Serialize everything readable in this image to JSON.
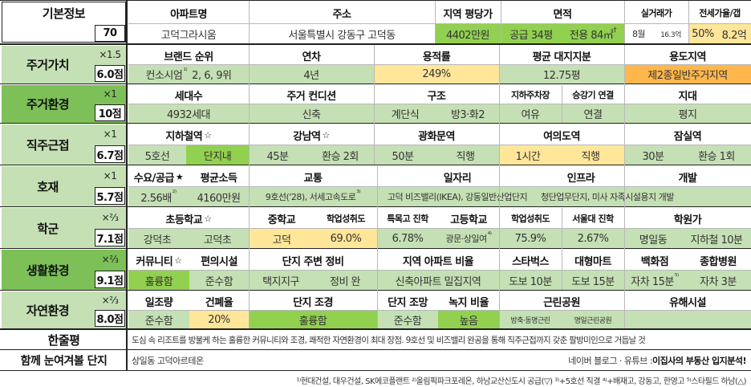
{
  "basic": {
    "label": "기본정보",
    "score": "70",
    "headers": {
      "apt": "아파트명",
      "addr": "주소",
      "price": "지역 평당가",
      "area": "면적",
      "trade": "실거래가",
      "gap": "전세가율/갭"
    },
    "apt_name": "고덕그라시움",
    "address": "서울특별시 강동구 고덕동",
    "price": "4402만원",
    "area_supply": "공급 34평",
    "area_use": "전용 84㎡",
    "area_mark": "†",
    "trade_month": "8월",
    "trade_value": "16.3억",
    "gap_rate": "50%",
    "gap_value": "8.2억"
  },
  "living_value": {
    "label": "주거가치",
    "mult": "×1.5",
    "score": "6.0점",
    "h1": "브랜드 순위",
    "h2": "연차",
    "h3": "용적률",
    "h4": "평균 대지지분",
    "h5": "용도지역",
    "v1a": "컨소시엄",
    "v1sup": "¹⁾",
    "v1b": "2, 6, 9위",
    "v2": "4년",
    "v3": "249%",
    "v4": "12.75평",
    "v5": "제2종일반주거지역"
  },
  "living_env": {
    "label": "주거환경",
    "mult": "×1",
    "score": "10점",
    "h1": "세대수",
    "h2": "주거 컨디션",
    "h3": "구조",
    "h4a": "지하주차장",
    "h4b": "승강기 연결",
    "h5": "지대",
    "v1": "4932세대",
    "v2": "신축",
    "v3a": "계단식",
    "v3b": "방3·화2",
    "v4a": "여유",
    "v4b": "연결",
    "v5": "평지"
  },
  "commute": {
    "label": "직주근접",
    "mult": "×1",
    "score": "6.7점",
    "h1": "지하철역",
    "h1s": "☆",
    "h2": "강남역",
    "h2s": "☆",
    "h3": "광화문역",
    "h4": "여의도역",
    "h5": "잠실역",
    "v1a": "5호선",
    "v1b": "단지내",
    "v2a": "45분",
    "v2b": "환승 2회",
    "v3a": "50분",
    "v3b": "직행",
    "v4a": "1시간",
    "v4b": "직행",
    "v5a": "30분",
    "v5b": "환승 1회"
  },
  "boon": {
    "label": "호재",
    "mult": "×1",
    "score": "5.7점",
    "h1": "수요/공급",
    "h1s": "★",
    "h2": "평균소득",
    "h3": "교통",
    "h4": "일자리",
    "h5": "인프라",
    "h6": "개발",
    "v1": "2.56배",
    "v1sup": "²⁾",
    "v2": "4160만원",
    "v3": "9호선('28), 서세고속도로",
    "v3sup": "³⁾",
    "v4": "고덕 비즈밸리(IKEA), 강동일반산업단지",
    "v5": "청단업무단지, 미사 자족시설용지 개발"
  },
  "school": {
    "label": "학군",
    "mult": "×⅔",
    "score": "7.1점",
    "h1": "초등학교",
    "h1s": "☆",
    "h2": "중학교",
    "h2b": "학업성취도",
    "h3": "특목고 진학",
    "h4": "고등학교",
    "h4b": "학업성취도",
    "h5": "서울대 진학",
    "h6": "학원가",
    "v1a": "강덕초",
    "v1b": "고덕초",
    "v2a": "고덕",
    "v2b": "69.0%",
    "v3": "6.78%",
    "v4a": "광문·상일여",
    "v4sup": "⁴⁾",
    "v4b": "75.9%",
    "v5": "2.67%",
    "v6a": "명일동",
    "v6b": "지하철 10분"
  },
  "life_env": {
    "label": "생활환경",
    "mult": "×⅔",
    "score": "9.1점",
    "h1": "커뮤니티",
    "h1s": "☆",
    "h2": "편의시설",
    "h3": "단지 주변 정비",
    "h4": "지역 아파트 비율",
    "h5": "스타벅스",
    "h6": "대형마트",
    "h7": "백화점",
    "h8": "종합병원",
    "v1": "훌륭함",
    "v2": "준수함",
    "v3a": "택지지구",
    "v3b": "정비 완",
    "v4": "신축아파트 밀집지역",
    "v5": "도보 10분",
    "v6": "도보 15분",
    "v7": "자차 15분",
    "v7sup": "⁵⁾",
    "v8": "자차 3분"
  },
  "nature": {
    "label": "자연환경",
    "mult": "×⅔",
    "score": "8.0점",
    "h1": "일조량",
    "h2": "건폐율",
    "h3": "단지 조경",
    "h4": "단지 조망",
    "h5": "녹지 비율",
    "h6": "근린공원",
    "h7": "유해시설",
    "v1": "준수함",
    "v2": "20%",
    "v3": "훌륭함",
    "v4": "준수함",
    "v5": "높음",
    "v6a": "방축·동명근린",
    "v6b": "명일근린공원",
    "v7": ""
  },
  "summary": {
    "label": "한줄평",
    "text": "도심 속 리조트를 방불케 하는 훌륭한 커뮤니티와 조경, 쾌적한 자연환경이 최대 장점. 9호선 및 비즈밸리 완공을 통해 직주근접까지 갖춘 팔방미인으로 거듭날 것"
  },
  "compare": {
    "label": "함께 눈여겨볼 단지",
    "text": "상일동 고덕아르테온",
    "credit_a": "네이버 블로그 · 유튜브 : ",
    "credit_b": "이집사의 부동산 입지분석!"
  },
  "footnote": "¹⁾현대건설, 대우건설, SK에코플랜트 ²⁾올림픽파크포레온, 하남교산신도시 공급(▽) ³⁾+5호선 직결 ⁴⁾+배재고, 강동고, 한영고 ⁵⁾스타필드 하남(△)"
}
